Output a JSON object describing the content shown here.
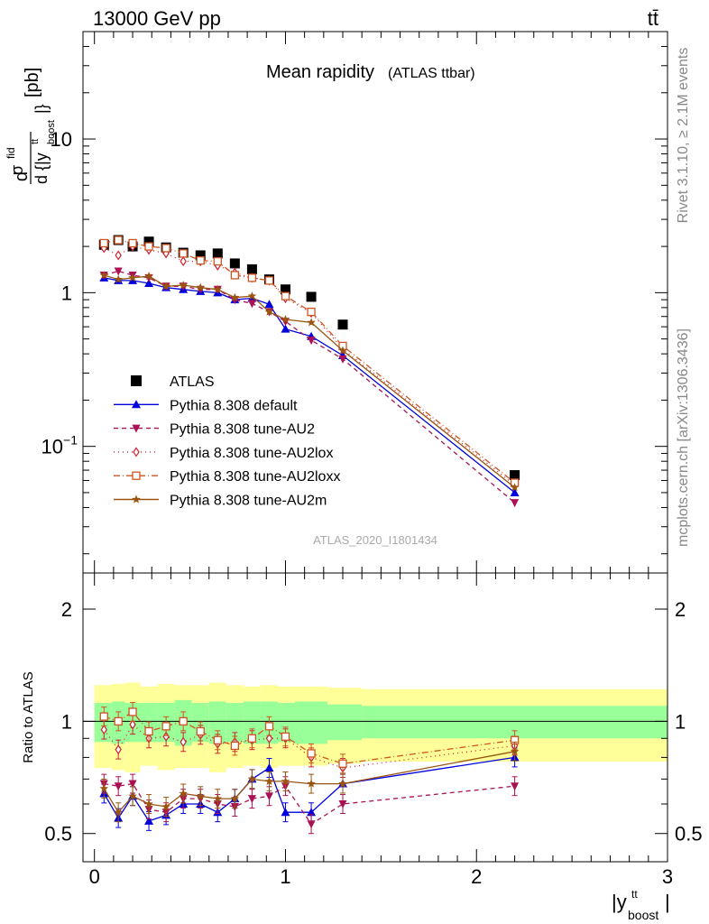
{
  "header": {
    "left_label": "13000 GeV pp",
    "right_label": "tt̄"
  },
  "side_labels": {
    "rivet": "Rivet 3.1.10, ≥ 2.1M events",
    "mcplots": "mcplots.cern.ch [arXiv:1306.3436]"
  },
  "chart_data": [
    {
      "type": "scatter",
      "title": "Mean rapidity",
      "subtitle": "(ATLAS ttbar)",
      "watermark": "ATLAS_2020_I1801434",
      "ylabel_parts": {
        "num_d": "d",
        "num_sigma": "σ",
        "num_sup": "fid",
        "den": "d {|y",
        "den_sup": "tt",
        "den_sub": "boost",
        "den_close": "|}",
        "unit": "[pb]"
      },
      "xlabel_parts": {
        "main": "|y",
        "sup": "tt",
        "sub": "boost",
        "close": "|"
      },
      "y_scale": "log",
      "xlim": [
        -0.06,
        3.0
      ],
      "ylim": [
        0.015,
        50
      ],
      "y_ticks": [
        {
          "value": 10,
          "label": "10"
        },
        {
          "value": 1,
          "label": "1"
        },
        {
          "value": 0.1,
          "label": "10",
          "sup": "−1"
        }
      ],
      "x": [
        0.05,
        0.125,
        0.2,
        0.285,
        0.375,
        0.465,
        0.555,
        0.645,
        0.735,
        0.825,
        0.915,
        1.0,
        1.135,
        1.3,
        2.2
      ],
      "x_halfwidth": [
        0.04,
        0.04,
        0.04,
        0.05,
        0.04,
        0.05,
        0.04,
        0.05,
        0.04,
        0.05,
        0.04,
        0.05,
        0.085,
        0.1,
        0.8
      ],
      "legend_position": "lower-left",
      "series": [
        {
          "name": "ATLAS",
          "color": "#000000",
          "marker": "square",
          "dash": "none",
          "values": [
            2.05,
            2.2,
            2.0,
            2.15,
            1.97,
            1.82,
            1.75,
            1.8,
            1.55,
            1.42,
            1.22,
            1.05,
            0.94,
            0.62,
            0.065
          ]
        },
        {
          "name": "Pythia 8.308 default",
          "color": "#0000dd",
          "marker": "triangle-up",
          "dash": "solid",
          "values": [
            1.25,
            1.2,
            1.2,
            1.15,
            1.08,
            1.05,
            1.02,
            1.0,
            0.9,
            0.92,
            0.84,
            0.58,
            0.52,
            0.39,
            0.05
          ]
        },
        {
          "name": "Pythia 8.308 tune-AU2",
          "color": "#aa1155",
          "marker": "triangle-down",
          "dash": "5,4",
          "values": [
            1.3,
            1.38,
            1.3,
            1.25,
            1.1,
            1.1,
            1.05,
            1.05,
            0.9,
            0.85,
            0.75,
            0.65,
            0.49,
            0.37,
            0.043
          ]
        },
        {
          "name": "Pythia 8.308 tune-AU2lox",
          "color": "#cc2233",
          "marker": "diamond-open",
          "dash": "1,4",
          "values": [
            1.95,
            1.75,
            2.0,
            1.9,
            1.8,
            1.6,
            1.6,
            1.5,
            1.35,
            1.25,
            1.2,
            0.92,
            0.74,
            0.43,
            0.056
          ]
        },
        {
          "name": "Pythia 8.308 tune-AU2loxx",
          "color": "#cc5522",
          "marker": "square-open",
          "dash": "7,3,1,3",
          "values": [
            2.1,
            2.2,
            2.1,
            2.0,
            1.95,
            1.8,
            1.62,
            1.6,
            1.3,
            1.25,
            1.2,
            0.95,
            0.75,
            0.45,
            0.058
          ]
        },
        {
          "name": "Pythia 8.308 tune-AU2m",
          "color": "#995511",
          "marker": "star",
          "dash": "solid",
          "values": [
            1.3,
            1.22,
            1.25,
            1.28,
            1.1,
            1.12,
            1.08,
            1.05,
            0.93,
            0.95,
            0.75,
            0.67,
            0.64,
            0.42,
            0.054
          ]
        }
      ]
    },
    {
      "type": "scatter",
      "ylabel": "Ratio to ATLAS",
      "y_scale": "log",
      "xlim": [
        -0.06,
        3.0
      ],
      "ylim": [
        0.42,
        2.5
      ],
      "y_ticks": [
        {
          "value": 2,
          "label": "2"
        },
        {
          "value": 1,
          "label": "1"
        },
        {
          "value": 0.5,
          "label": "0.5"
        }
      ],
      "x_ticks": [
        {
          "value": 0,
          "label": "0"
        },
        {
          "value": 1,
          "label": "1"
        },
        {
          "value": 2,
          "label": "2"
        },
        {
          "value": 3,
          "label": "3"
        }
      ],
      "bins": [
        0,
        0.09,
        0.16,
        0.24,
        0.33,
        0.42,
        0.51,
        0.6,
        0.69,
        0.78,
        0.87,
        0.96,
        1.05,
        1.22,
        1.4,
        3.0
      ],
      "band_inner": [
        0.12,
        0.13,
        0.12,
        0.12,
        0.12,
        0.14,
        0.12,
        0.13,
        0.12,
        0.13,
        0.13,
        0.12,
        0.13,
        0.11,
        0.1
      ],
      "band_outer": [
        0.25,
        0.26,
        0.27,
        0.24,
        0.26,
        0.25,
        0.25,
        0.27,
        0.25,
        0.24,
        0.25,
        0.24,
        0.24,
        0.23,
        0.22
      ],
      "x": [
        0.05,
        0.125,
        0.2,
        0.285,
        0.375,
        0.465,
        0.555,
        0.645,
        0.735,
        0.825,
        0.915,
        1.0,
        1.135,
        1.3,
        2.2
      ],
      "series": [
        {
          "name": "Pythia 8.308 default",
          "color": "#0000dd",
          "marker": "triangle-up",
          "dash": "solid",
          "values": [
            0.64,
            0.55,
            0.63,
            0.54,
            0.56,
            0.6,
            0.6,
            0.57,
            0.62,
            0.7,
            0.75,
            0.57,
            0.57,
            0.68,
            0.8
          ]
        },
        {
          "name": "Pythia 8.308 tune-AU2",
          "color": "#aa1155",
          "marker": "triangle-down",
          "dash": "5,4",
          "values": [
            0.68,
            0.67,
            0.68,
            0.58,
            0.57,
            0.62,
            0.62,
            0.6,
            0.59,
            0.62,
            0.63,
            0.67,
            0.53,
            0.6,
            0.67
          ]
        },
        {
          "name": "Pythia 8.308 tune-AU2lox",
          "color": "#cc2233",
          "marker": "diamond-open",
          "dash": "1,4",
          "values": [
            0.95,
            0.84,
            0.98,
            0.9,
            0.91,
            0.88,
            0.92,
            0.87,
            0.88,
            0.89,
            0.9,
            0.9,
            0.8,
            0.75,
            0.86
          ]
        },
        {
          "name": "Pythia 8.308 tune-AU2loxx",
          "color": "#cc5522",
          "marker": "square-open",
          "dash": "7,3,1,3",
          "values": [
            1.03,
            1.0,
            1.06,
            0.94,
            0.97,
            1.0,
            0.94,
            0.89,
            0.86,
            0.9,
            0.97,
            0.91,
            0.82,
            0.77,
            0.89
          ]
        },
        {
          "name": "Pythia 8.308 tune-AU2m",
          "color": "#995511",
          "marker": "star",
          "dash": "solid",
          "values": [
            0.66,
            0.57,
            0.63,
            0.6,
            0.59,
            0.64,
            0.63,
            0.62,
            0.62,
            0.7,
            0.69,
            0.69,
            0.68,
            0.68,
            0.83
          ]
        }
      ]
    }
  ]
}
